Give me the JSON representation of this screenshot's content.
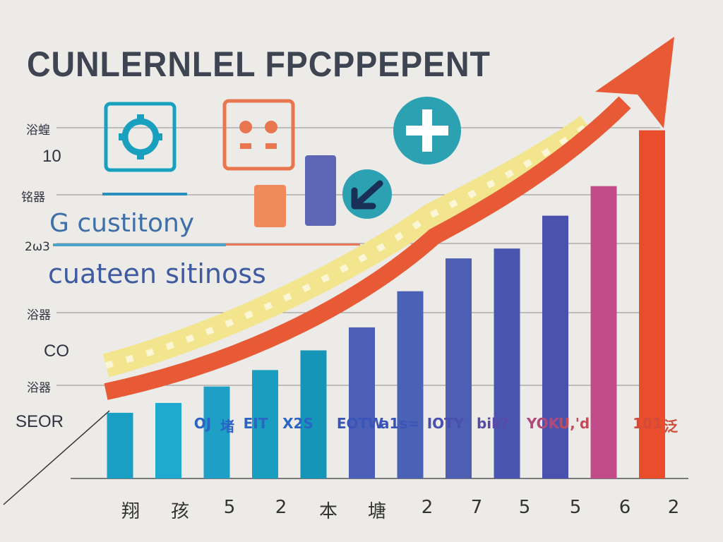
{
  "title": "CUNLERNLEL FPCPPEPENT",
  "subtitle_1": "G  custitony",
  "subtitle_2": "cuateen sitinoss",
  "colors": {
    "background": "#ecebe8",
    "arrow_red": "#e85a35",
    "band_yellow": "#f3e58e",
    "teal": "#1aa0bf",
    "blue": "#4a5fb5",
    "magenta": "#c24c8a",
    "red_bar": "#ea4d2c"
  },
  "icons": [
    "gear-icon",
    "face-icon",
    "plus-icon",
    "back-arrow-icon"
  ],
  "chart_data": {
    "type": "bar",
    "title": "CUNLERNLEL FPCPPEPENT",
    "y_tick_labels": [
      "浴蝗",
      "10",
      "铭器",
      "2ω3",
      "浴器",
      "CO",
      "浴器",
      "SEOR"
    ],
    "categories": [
      "翔",
      "孩",
      "5",
      "2",
      "本",
      "塘",
      "2",
      "7",
      "5",
      "5",
      "6",
      "2"
    ],
    "data_labels": [
      "OJ",
      "堵",
      "EIT",
      "X2S",
      "EOTW",
      "a1s=",
      "IOTY",
      "bik?",
      "YOK",
      "U,'d",
      "101",
      "泛"
    ],
    "series": [
      {
        "values": [
          1.0,
          1.15,
          1.4,
          1.65,
          1.95,
          2.3,
          2.85,
          3.35,
          3.5,
          4.0,
          4.45,
          5.3
        ]
      }
    ],
    "ylim": [
      0,
      5.5
    ],
    "trend_arrow": "rising, top-right",
    "grid": true
  }
}
